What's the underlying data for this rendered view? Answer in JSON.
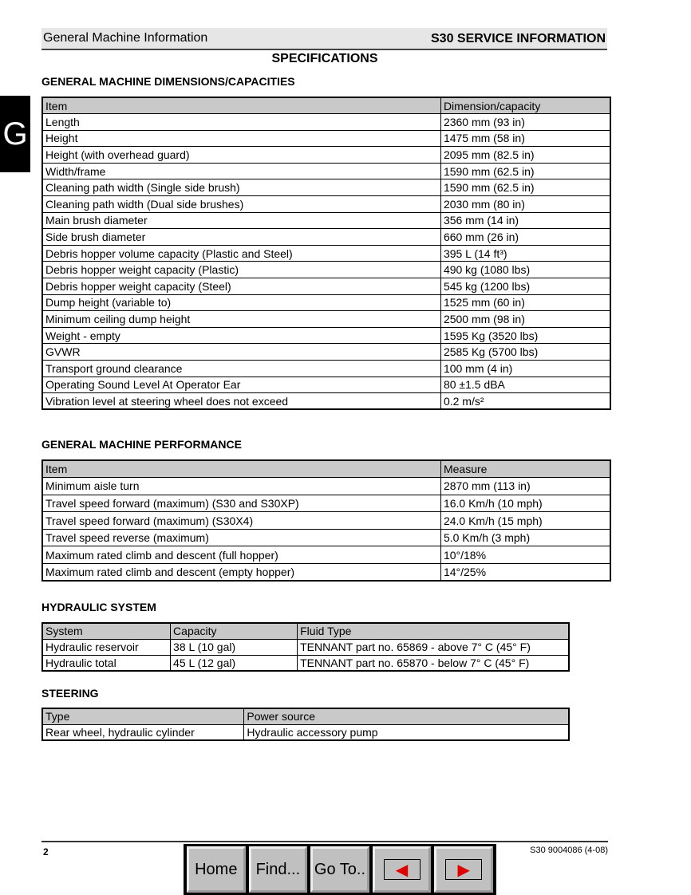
{
  "header": {
    "left": "General Machine Information",
    "right": "S30 SERVICE INFORMATION"
  },
  "title": "SPECIFICATIONS",
  "tab_letter": "G",
  "dimensions": {
    "heading": "GENERAL MACHINE DIMENSIONS/CAPACITIES",
    "columns": [
      "Item",
      "Dimension/capacity"
    ],
    "rows": [
      [
        "Length",
        "2360 mm (93 in)"
      ],
      [
        "Height",
        "1475 mm (58 in)"
      ],
      [
        "Height (with overhead guard)",
        "2095 mm (82.5 in)"
      ],
      [
        "Width/frame",
        "1590 mm (62.5 in)"
      ],
      [
        "Cleaning path width (Single side brush)",
        "1590 mm (62.5 in)"
      ],
      [
        "Cleaning path width (Dual side brushes)",
        "2030 mm (80 in)"
      ],
      [
        "Main brush diameter",
        "356 mm (14 in)"
      ],
      [
        "Side brush diameter",
        "660 mm (26 in)"
      ],
      [
        "Debris hopper volume capacity (Plastic and Steel)",
        "395 L (14 ft³)"
      ],
      [
        "Debris hopper weight capacity (Plastic)",
        "490 kg (1080 lbs)"
      ],
      [
        "Debris hopper weight capacity (Steel)",
        "545 kg (1200 lbs)"
      ],
      [
        "Dump height (variable to)",
        "1525 mm (60 in)"
      ],
      [
        "Minimum ceiling dump height",
        "2500 mm (98 in)"
      ],
      [
        "Weight - empty",
        "1595 Kg (3520 lbs)"
      ],
      [
        "GVWR",
        "2585 Kg (5700 lbs)"
      ],
      [
        "Transport ground clearance",
        "100 mm (4 in)"
      ],
      [
        "Operating Sound Level At Operator Ear",
        "80 ±1.5 dBA"
      ],
      [
        "Vibration level at steering wheel does not exceed",
        "0.2 m/s²"
      ]
    ]
  },
  "performance": {
    "heading": "GENERAL MACHINE PERFORMANCE",
    "columns": [
      "Item",
      "Measure"
    ],
    "rows": [
      [
        "Minimum aisle turn",
        "2870 mm (113 in)"
      ],
      [
        "Travel speed forward (maximum) (S30 and S30XP)",
        "16.0 Km/h (10 mph)"
      ],
      [
        "Travel speed forward (maximum) (S30X4)",
        "24.0 Km/h (15 mph)"
      ],
      [
        "Travel speed reverse (maximum)",
        "5.0 Km/h (3 mph)"
      ],
      [
        "Maximum rated climb and descent (full hopper)",
        "10°/18%"
      ],
      [
        "Maximum rated climb and descent (empty hopper)",
        "14°/25%"
      ]
    ]
  },
  "hydraulic": {
    "heading": "HYDRAULIC SYSTEM",
    "columns": [
      "System",
      "Capacity",
      "Fluid Type"
    ],
    "rows": [
      [
        "Hydraulic reservoir",
        "38 L (10 gal)",
        "TENNANT part no. 65869 - above 7° C (45° F)"
      ],
      [
        "Hydraulic total",
        "45 L (12 gal)",
        "TENNANT part no. 65870 - below 7° C (45° F)"
      ]
    ]
  },
  "steering": {
    "heading": "STEERING",
    "columns": [
      "Type",
      "Power source"
    ],
    "rows": [
      [
        "Rear wheel, hydraulic cylinder",
        "Hydraulic accessory pump"
      ]
    ]
  },
  "footer": {
    "page": "2",
    "doc": "S30 9004086 (4-08)"
  },
  "nav": {
    "home": "Home",
    "find": "Find...",
    "goto": "Go To..",
    "prev_icon": "arrow-left-icon",
    "next_icon": "arrow-right-icon",
    "arrow_color": "#e00000"
  }
}
